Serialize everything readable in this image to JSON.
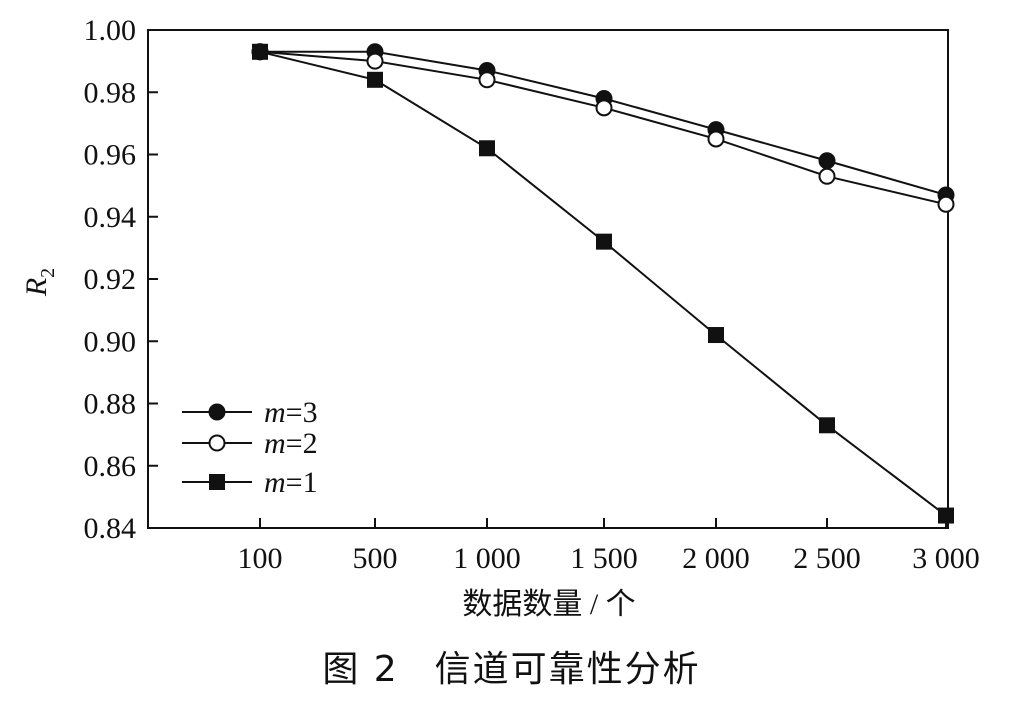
{
  "chart_data": {
    "type": "line",
    "x": [
      "100",
      "500",
      "1 000",
      "1 500",
      "2 000",
      "2 500",
      "3 000"
    ],
    "xlabel": "数据数量 / 个",
    "ylabel_main": "R",
    "ylabel_sub": "2",
    "ylim": [
      0.84,
      1.0
    ],
    "yticks": [
      "0.84",
      "0.86",
      "0.88",
      "0.90",
      "0.92",
      "0.94",
      "0.96",
      "0.98",
      "1.00"
    ],
    "grid": false,
    "legend_position": "bottom-left",
    "series": [
      {
        "name": "m=3",
        "var": "m",
        "eq": "=3",
        "marker": "filled-circle",
        "values": [
          0.993,
          0.993,
          0.987,
          0.978,
          0.968,
          0.958,
          0.947
        ]
      },
      {
        "name": "m=2",
        "var": "m",
        "eq": "=2",
        "marker": "open-circle",
        "values": [
          0.993,
          0.99,
          0.984,
          0.975,
          0.965,
          0.953,
          0.944
        ]
      },
      {
        "name": "m=1",
        "var": "m",
        "eq": "=1",
        "marker": "filled-square",
        "values": [
          0.993,
          0.984,
          0.962,
          0.932,
          0.902,
          0.873,
          0.844
        ]
      }
    ]
  },
  "caption": {
    "label": "图 2",
    "title": "信道可靠性分析"
  }
}
